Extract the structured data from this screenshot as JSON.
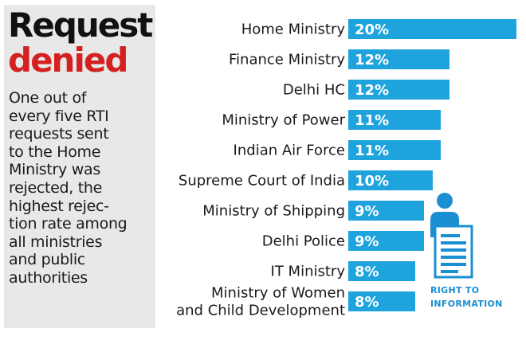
{
  "headline": {
    "line1": "Request",
    "line2": "denied"
  },
  "description": [
    "One out of",
    "every five RTI",
    "requests sent",
    "to the Home",
    "Ministry was",
    "rejected, the",
    "highest rejec-",
    "tion rate among",
    "all ministries",
    "and public",
    "authorities"
  ],
  "colors": {
    "bar": "#1fa3dd",
    "headline_accent": "#d42020",
    "panel": "#e8e8e8"
  },
  "chart_data": {
    "type": "bar",
    "orientation": "horizontal",
    "unit": "%",
    "xlim": [
      0,
      20
    ],
    "categories": [
      [
        "Home Ministry"
      ],
      [
        "Finance Ministry"
      ],
      [
        "Delhi HC"
      ],
      [
        "Ministry of Power"
      ],
      [
        "Indian Air Force"
      ],
      [
        "Supreme Court of India"
      ],
      [
        "Ministry of Shipping"
      ],
      [
        "Delhi Police"
      ],
      [
        "IT Ministry"
      ],
      [
        "Ministry of Women",
        "and Child Development"
      ]
    ],
    "values": [
      20,
      12,
      12,
      11,
      11,
      10,
      9,
      9,
      8,
      8
    ],
    "value_labels": [
      "20%",
      "12%",
      "12%",
      "11%",
      "11%",
      "10%",
      "9%",
      "9%",
      "8%",
      "8%"
    ]
  },
  "icon": {
    "name": "document-person-icon",
    "caption": [
      "RIGHT TO",
      "INFORMATION"
    ]
  }
}
